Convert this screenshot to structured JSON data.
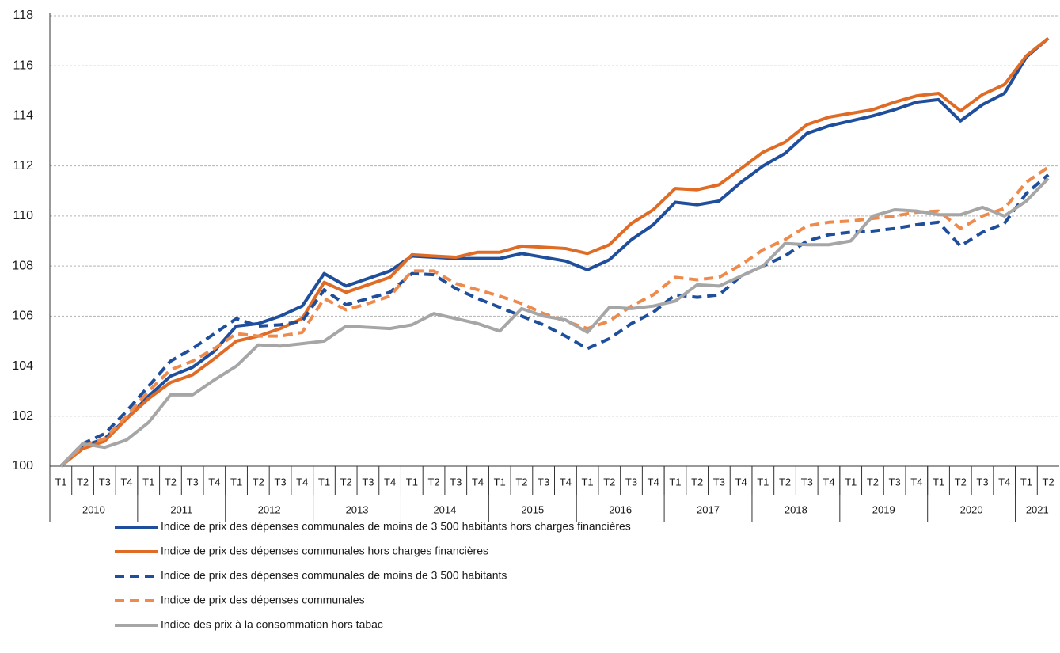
{
  "chart_data": {
    "type": "line",
    "categories": [
      "T1",
      "T2",
      "T3",
      "T4",
      "T1",
      "T2",
      "T3",
      "T4",
      "T1",
      "T2",
      "T3",
      "T4",
      "T1",
      "T2",
      "T3",
      "T4",
      "T1",
      "T2",
      "T3",
      "T4",
      "T1",
      "T2",
      "T3",
      "T4",
      "T1",
      "T2",
      "T3",
      "T4",
      "T1",
      "T2",
      "T3",
      "T4",
      "T1",
      "T2",
      "T3",
      "T4",
      "T1",
      "T2",
      "T3",
      "T4",
      "T1",
      "T2",
      "T3",
      "T4",
      "T1",
      "T2"
    ],
    "years": [
      "2010",
      "2011",
      "2012",
      "2013",
      "2014",
      "2015",
      "2016",
      "2017",
      "2018",
      "2019",
      "2020",
      "2021"
    ],
    "ylim": [
      100,
      118
    ],
    "yticks": [
      100,
      102,
      104,
      106,
      108,
      110,
      112,
      114,
      116,
      118
    ],
    "grid": true,
    "series": [
      {
        "name": "Indice de prix des dépenses communales de moins de 3 500 habitants hors charges financières",
        "color": "#1f4e9c",
        "style": "solid",
        "values": [
          100,
          100.8,
          101.1,
          101.9,
          102.8,
          103.6,
          103.95,
          104.6,
          105.6,
          105.7,
          106.0,
          106.4,
          107.7,
          107.2,
          107.5,
          107.8,
          108.4,
          108.35,
          108.3,
          108.3,
          108.3,
          108.5,
          108.35,
          108.2,
          107.85,
          108.25,
          109.05,
          109.65,
          110.55,
          110.45,
          110.6,
          111.35,
          112.0,
          112.5,
          113.3,
          113.6,
          113.8,
          114.0,
          114.25,
          114.55,
          114.65,
          113.8,
          114.45,
          114.9,
          116.35,
          117.1
        ]
      },
      {
        "name": "Indice de prix des dépenses communales hors charges financières",
        "color": "#e06b25",
        "style": "solid",
        "values": [
          100,
          100.7,
          101.0,
          101.9,
          102.7,
          103.35,
          103.65,
          104.3,
          105.0,
          105.2,
          105.5,
          105.9,
          107.35,
          106.95,
          107.25,
          107.55,
          108.45,
          108.4,
          108.35,
          108.55,
          108.55,
          108.8,
          108.75,
          108.7,
          108.5,
          108.85,
          109.7,
          110.25,
          111.1,
          111.05,
          111.25,
          111.9,
          112.55,
          112.95,
          113.65,
          113.95,
          114.1,
          114.25,
          114.55,
          114.8,
          114.9,
          114.2,
          114.85,
          115.25,
          116.4,
          117.1
        ]
      },
      {
        "name": "Indice de prix des dépenses communales de moins de 3 500 habitants",
        "color": "#1f4e9c",
        "style": "dashed",
        "values": [
          100,
          100.9,
          101.3,
          102.2,
          103.2,
          104.2,
          104.7,
          105.3,
          105.9,
          105.6,
          105.65,
          105.8,
          107.05,
          106.45,
          106.7,
          106.95,
          107.7,
          107.65,
          107.1,
          106.7,
          106.35,
          106.0,
          105.65,
          105.2,
          104.7,
          105.1,
          105.7,
          106.15,
          106.85,
          106.75,
          106.85,
          107.6,
          108.0,
          108.4,
          109.0,
          109.25,
          109.35,
          109.4,
          109.5,
          109.65,
          109.75,
          108.8,
          109.35,
          109.7,
          110.9,
          111.65
        ]
      },
      {
        "name": "Indice de prix des dépenses communales",
        "color": "#ed8a4c",
        "style": "dashed",
        "values": [
          100,
          100.8,
          101.1,
          102.0,
          103.0,
          103.85,
          104.2,
          104.7,
          105.3,
          105.2,
          105.2,
          105.35,
          106.7,
          106.25,
          106.5,
          106.8,
          107.8,
          107.8,
          107.3,
          107.05,
          106.8,
          106.5,
          106.1,
          105.8,
          105.5,
          105.8,
          106.4,
          106.85,
          107.55,
          107.45,
          107.55,
          108.05,
          108.65,
          109.05,
          109.6,
          109.75,
          109.8,
          109.9,
          110.0,
          110.15,
          110.2,
          109.5,
          110.0,
          110.3,
          111.35,
          111.95
        ]
      },
      {
        "name": "Indice des prix à la consommation hors tabac",
        "color": "#a6a6a6",
        "style": "solid",
        "values": [
          100,
          100.9,
          100.75,
          101.05,
          101.75,
          102.85,
          102.85,
          103.45,
          104.0,
          104.85,
          104.8,
          104.9,
          105.0,
          105.6,
          105.55,
          105.5,
          105.65,
          106.1,
          105.9,
          105.7,
          105.4,
          106.3,
          106.0,
          105.85,
          105.35,
          106.35,
          106.3,
          106.4,
          106.6,
          107.25,
          107.2,
          107.6,
          108.0,
          108.9,
          108.85,
          108.85,
          109.0,
          110.0,
          110.25,
          110.2,
          110.05,
          110.05,
          110.35,
          110.0,
          110.6,
          111.5
        ]
      }
    ]
  }
}
